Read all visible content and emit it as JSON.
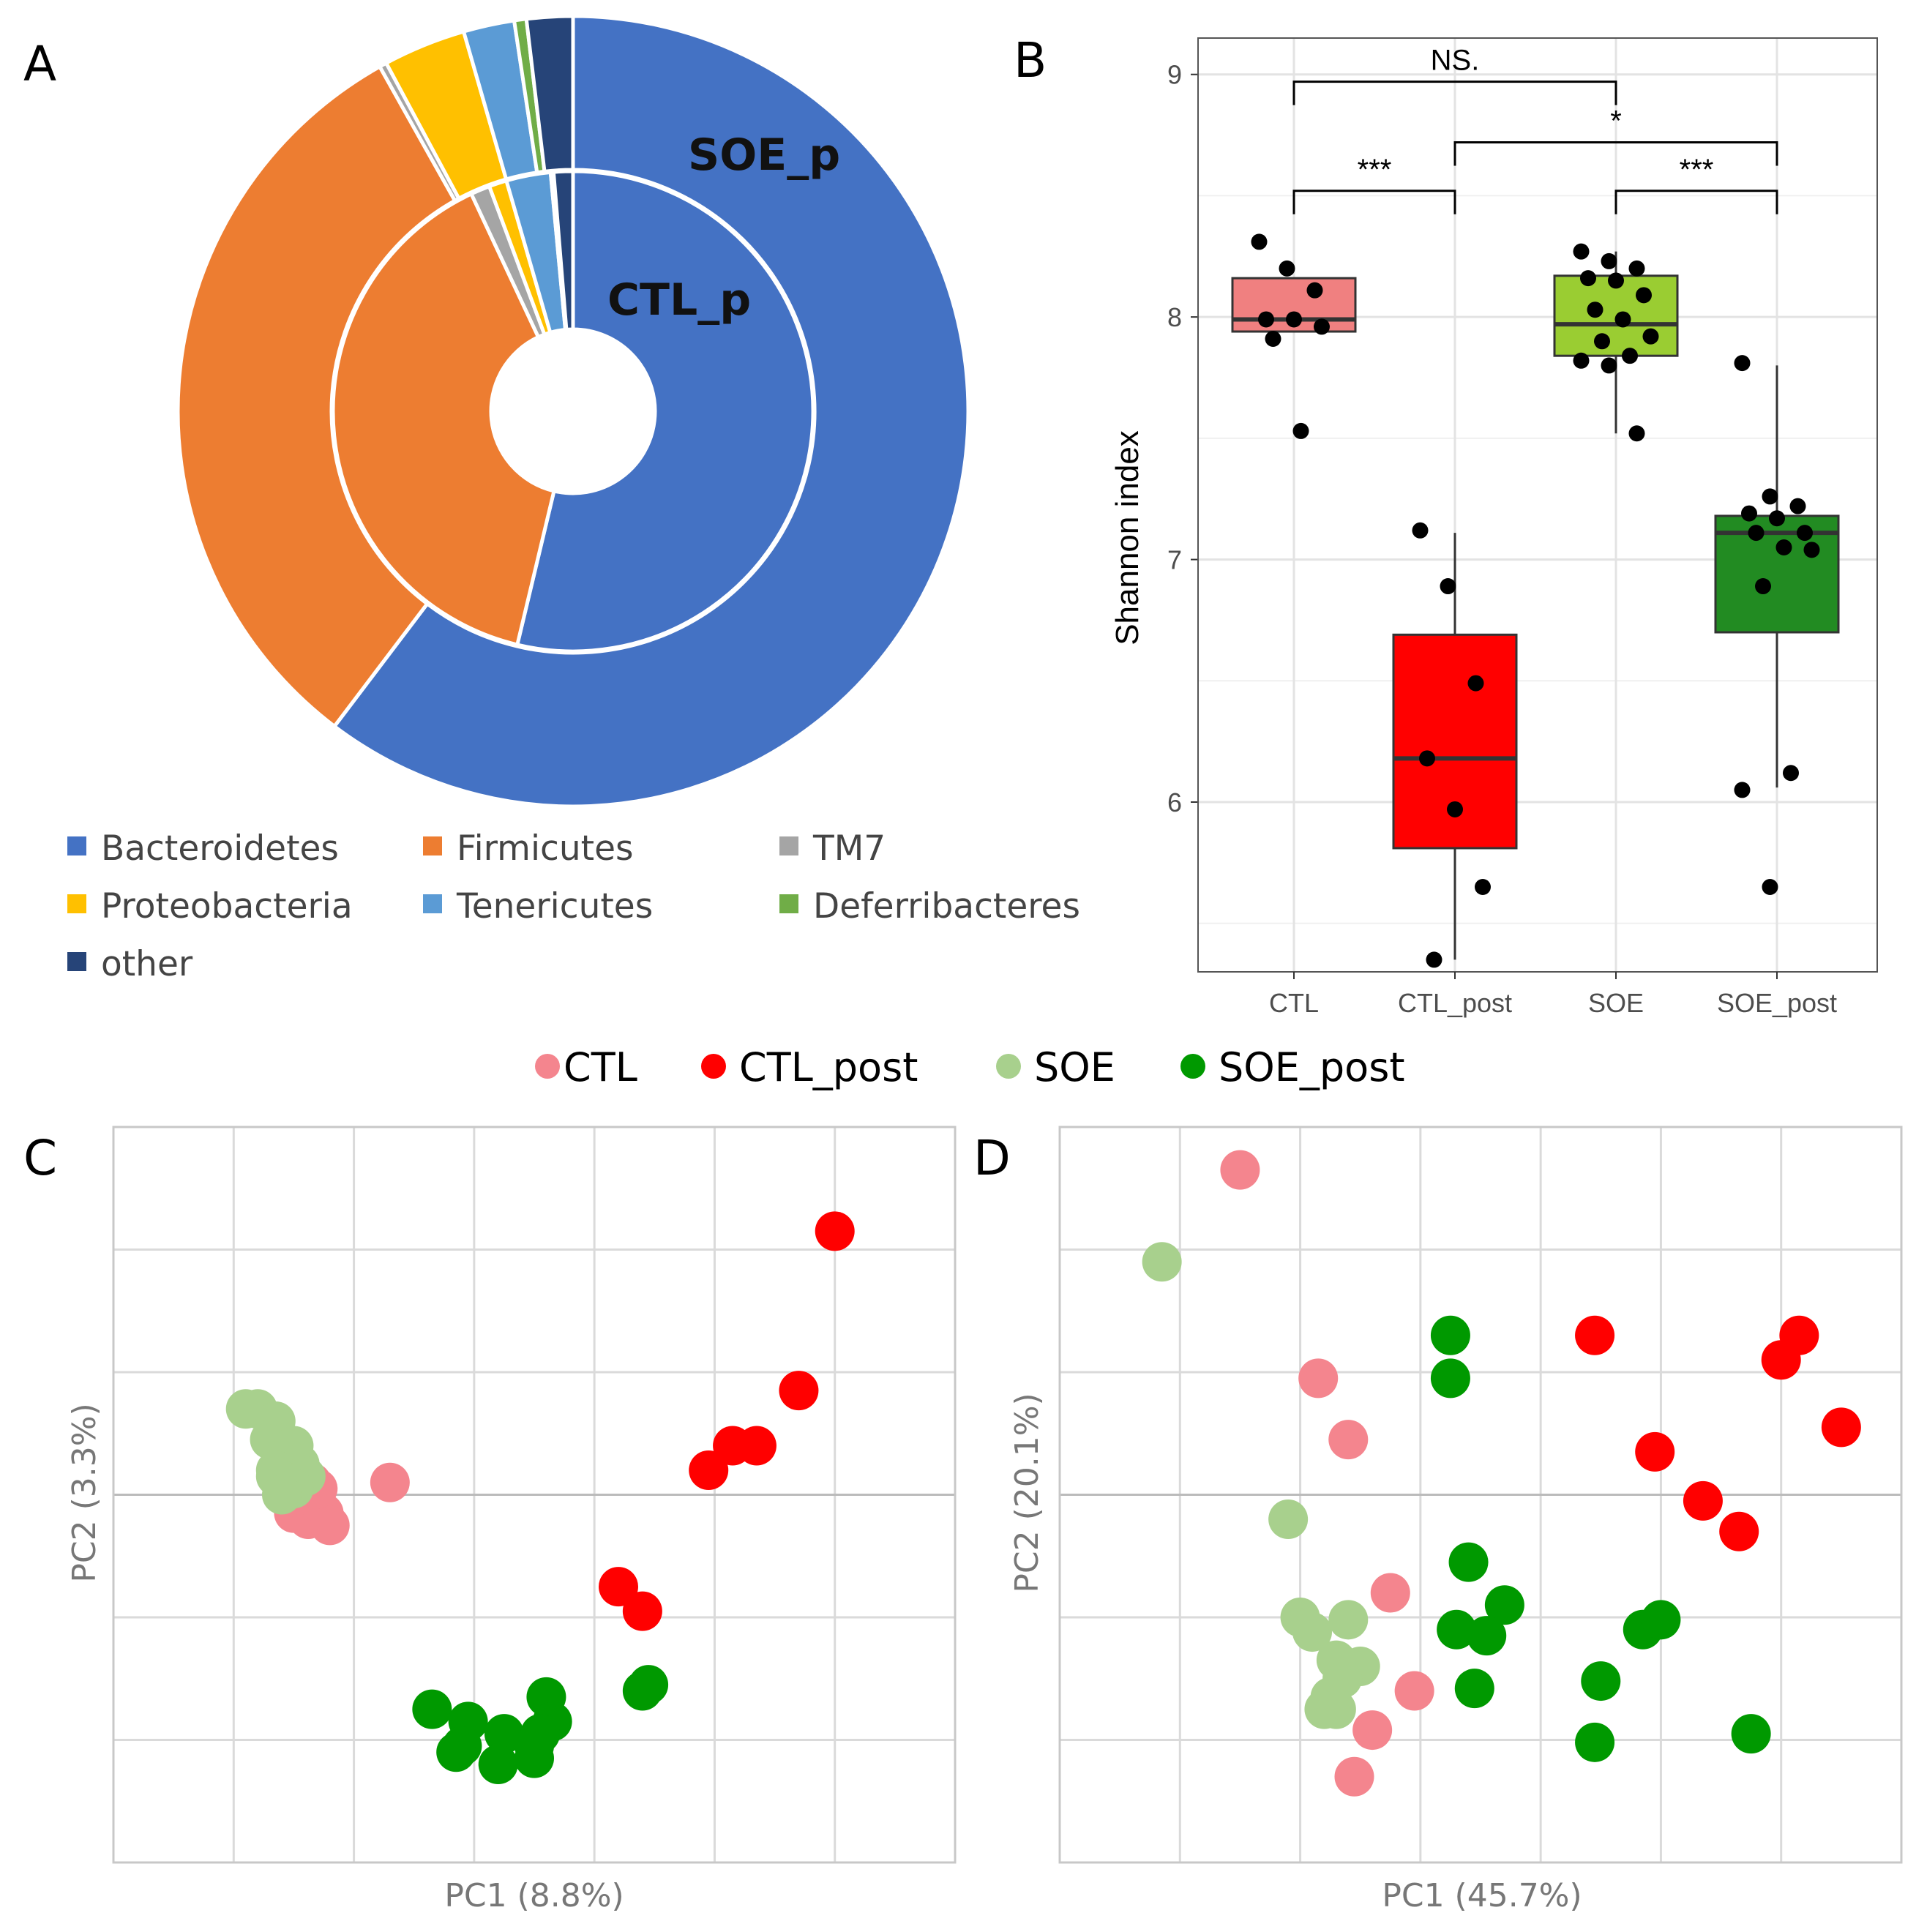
{
  "chart_data": [
    {
      "panel": "A",
      "type": "pie",
      "subtype": "nested donut",
      "rings": [
        {
          "name": "SOE_p",
          "values": [
            60.8,
            31.8,
            0.3,
            3.4,
            2.1,
            0.5,
            1.9
          ]
        },
        {
          "name": "CTL_p",
          "values": [
            54.0,
            39.5,
            1.3,
            1.2,
            3.0,
            0.2,
            1.3
          ]
        }
      ],
      "legend": [
        "Bacteroidetes",
        "Firmicutes",
        "TM7",
        "Proteobacteria",
        "Tenericutes",
        "Deferribacteres",
        "other"
      ],
      "colors": [
        "#4472C4",
        "#ED7D31",
        "#A5A5A5",
        "#FFC000",
        "#5B9BD5",
        "#70AD47",
        "#264478"
      ]
    },
    {
      "panel": "B",
      "type": "box",
      "ylabel": "Shannon index",
      "ylim": [
        5.3,
        9.15
      ],
      "yticks": [
        "6",
        "7",
        "8",
        "9"
      ],
      "categories": [
        "CTL",
        "CTL_post",
        "SOE",
        "SOE_post"
      ],
      "colors": [
        "#F08080",
        "#FF0000",
        "#9ACD32",
        "#228B22"
      ],
      "boxes": [
        {
          "q1": 7.94,
          "median": 7.99,
          "q3": 8.16,
          "whisker_low": 7.94,
          "whisker_high": 8.16
        },
        {
          "q1": 5.81,
          "median": 6.18,
          "q3": 6.69,
          "whisker_low": 5.35,
          "whisker_high": 7.11
        },
        {
          "q1": 7.84,
          "median": 7.97,
          "q3": 8.17,
          "whisker_low": 7.52,
          "whisker_high": 8.27
        },
        {
          "q1": 6.7,
          "median": 7.11,
          "q3": 7.18,
          "whisker_low": 6.06,
          "whisker_high": 7.8
        }
      ],
      "points": [
        [
          8.31,
          8.2,
          8.11,
          7.99,
          7.99,
          7.96,
          7.91,
          7.53
        ],
        [
          7.12,
          6.89,
          6.49,
          6.18,
          5.97,
          5.65,
          5.35
        ],
        [
          8.27,
          8.23,
          8.2,
          8.16,
          8.15,
          8.09,
          8.03,
          7.99,
          7.92,
          7.9,
          7.84,
          7.82,
          7.8,
          7.52
        ],
        [
          7.81,
          7.26,
          7.22,
          7.19,
          7.17,
          7.11,
          7.11,
          7.05,
          7.04,
          6.89,
          6.12,
          6.05,
          5.65
        ]
      ],
      "significance": [
        {
          "from": "CTL",
          "to": "CTL_post",
          "label": "***"
        },
        {
          "from": "SOE",
          "to": "SOE_post",
          "label": "***"
        },
        {
          "from": "CTL_post",
          "to": "SOE_post",
          "label": "*"
        },
        {
          "from": "CTL",
          "to": "SOE",
          "label": "NS."
        }
      ]
    },
    {
      "panel": "C",
      "type": "scatter",
      "xlabel": "PC1 (8.8%)",
      "ylabel": "PC2 (3.3%)",
      "xlim": [
        0,
        7
      ],
      "ylim": [
        0,
        6
      ],
      "series": [
        {
          "name": "CTL",
          "color": "#F4858E",
          "points": [
            [
              1.45,
              3.05
            ],
            [
              1.5,
              2.85
            ],
            [
              1.62,
              2.8
            ],
            [
              1.75,
              2.85
            ],
            [
              1.8,
              2.75
            ],
            [
              1.55,
              3.0
            ],
            [
              1.65,
              3.1
            ],
            [
              1.7,
              3.05
            ],
            [
              2.3,
              3.1
            ]
          ]
        },
        {
          "name": "CTL_post",
          "color": "#FF0000",
          "points": [
            [
              6.0,
              5.15
            ],
            [
              5.7,
              3.85
            ],
            [
              5.35,
              3.4
            ],
            [
              5.15,
              3.4
            ],
            [
              4.95,
              3.2
            ],
            [
              4.2,
              2.25
            ],
            [
              4.4,
              2.05
            ]
          ]
        },
        {
          "name": "SOE",
          "color": "#A8D08D",
          "points": [
            [
              1.1,
              3.7
            ],
            [
              1.2,
              3.7
            ],
            [
              1.35,
              3.6
            ],
            [
              1.3,
              3.45
            ],
            [
              1.5,
              3.4
            ],
            [
              1.45,
              3.3
            ],
            [
              1.55,
              3.25
            ],
            [
              1.35,
              3.2
            ],
            [
              1.6,
              3.15
            ],
            [
              1.45,
              3.1
            ],
            [
              1.35,
              3.15
            ],
            [
              1.5,
              3.05
            ],
            [
              1.4,
              3.0
            ]
          ]
        },
        {
          "name": "SOE_post",
          "color": "#009900",
          "points": [
            [
              2.65,
              1.25
            ],
            [
              2.95,
              1.15
            ],
            [
              3.25,
              1.05
            ],
            [
              3.6,
              1.35
            ],
            [
              3.65,
              1.15
            ],
            [
              3.5,
              0.85
            ],
            [
              3.55,
              1.05
            ],
            [
              2.9,
              0.95
            ],
            [
              3.2,
              0.8
            ],
            [
              3.5,
              0.95
            ],
            [
              2.85,
              0.9
            ],
            [
              4.4,
              1.4
            ],
            [
              4.45,
              1.45
            ]
          ]
        }
      ]
    },
    {
      "panel": "D",
      "type": "scatter",
      "xlabel": "PC1 (45.7%)",
      "ylabel": "PC2 (20.1%)",
      "xlim": [
        0,
        7
      ],
      "ylim": [
        0,
        6
      ],
      "series": [
        {
          "name": "CTL",
          "color": "#F4858E",
          "points": [
            [
              1.5,
              5.65
            ],
            [
              2.15,
              3.95
            ],
            [
              2.4,
              3.45
            ],
            [
              2.75,
              2.2
            ],
            [
              2.95,
              1.4
            ],
            [
              2.6,
              1.08
            ],
            [
              2.45,
              0.7
            ]
          ]
        },
        {
          "name": "CTL_post",
          "color": "#FF0000",
          "points": [
            [
              4.45,
              4.3
            ],
            [
              6.15,
              4.3
            ],
            [
              6.0,
              4.1
            ],
            [
              6.5,
              3.55
            ],
            [
              4.95,
              3.35
            ],
            [
              5.35,
              2.95
            ],
            [
              5.65,
              2.7
            ]
          ]
        },
        {
          "name": "SOE",
          "color": "#A8D08D",
          "points": [
            [
              0.85,
              4.9
            ],
            [
              1.9,
              2.8
            ],
            [
              2.0,
              2.0
            ],
            [
              2.1,
              1.88
            ],
            [
              2.4,
              1.98
            ],
            [
              2.5,
              1.6
            ],
            [
              2.35,
              1.5
            ],
            [
              2.3,
              1.65
            ],
            [
              2.25,
              1.35
            ],
            [
              2.2,
              1.25
            ],
            [
              2.3,
              1.25
            ]
          ]
        },
        {
          "name": "SOE_post",
          "color": "#009900",
          "points": [
            [
              3.25,
              4.3
            ],
            [
              3.25,
              3.95
            ],
            [
              3.4,
              2.45
            ],
            [
              3.7,
              2.1
            ],
            [
              3.3,
              1.9
            ],
            [
              3.55,
              1.85
            ],
            [
              4.85,
              1.9
            ],
            [
              5.0,
              1.98
            ],
            [
              4.5,
              1.48
            ],
            [
              3.45,
              1.42
            ],
            [
              4.45,
              0.98
            ],
            [
              5.75,
              1.05
            ]
          ]
        }
      ]
    }
  ],
  "panelA": {
    "letter": "A",
    "outer_label": "SOE_p",
    "inner_label": "CTL_p",
    "legend": [
      "Bacteroidetes",
      "Firmicutes",
      "TM7",
      "Proteobacteria",
      "Tenericutes",
      "Deferribacteres",
      "other"
    ]
  },
  "panelB": {
    "letter": "B",
    "ylabel": "Shannon index",
    "yticks": [
      "6",
      "7",
      "8",
      "9"
    ],
    "xticks": [
      "CTL",
      "CTL_post",
      "SOE",
      "SOE_post"
    ],
    "sig": [
      "***",
      "***",
      "*",
      "NS."
    ]
  },
  "shared_legend": [
    "CTL",
    "CTL_post",
    "SOE",
    "SOE_post"
  ],
  "panelC": {
    "letter": "C",
    "xlabel": "PC1 (8.8%)",
    "ylabel": "PC2 (3.3%)"
  },
  "panelD": {
    "letter": "D",
    "xlabel": "PC1 (45.7%)",
    "ylabel": "PC2 (20.1%)"
  }
}
